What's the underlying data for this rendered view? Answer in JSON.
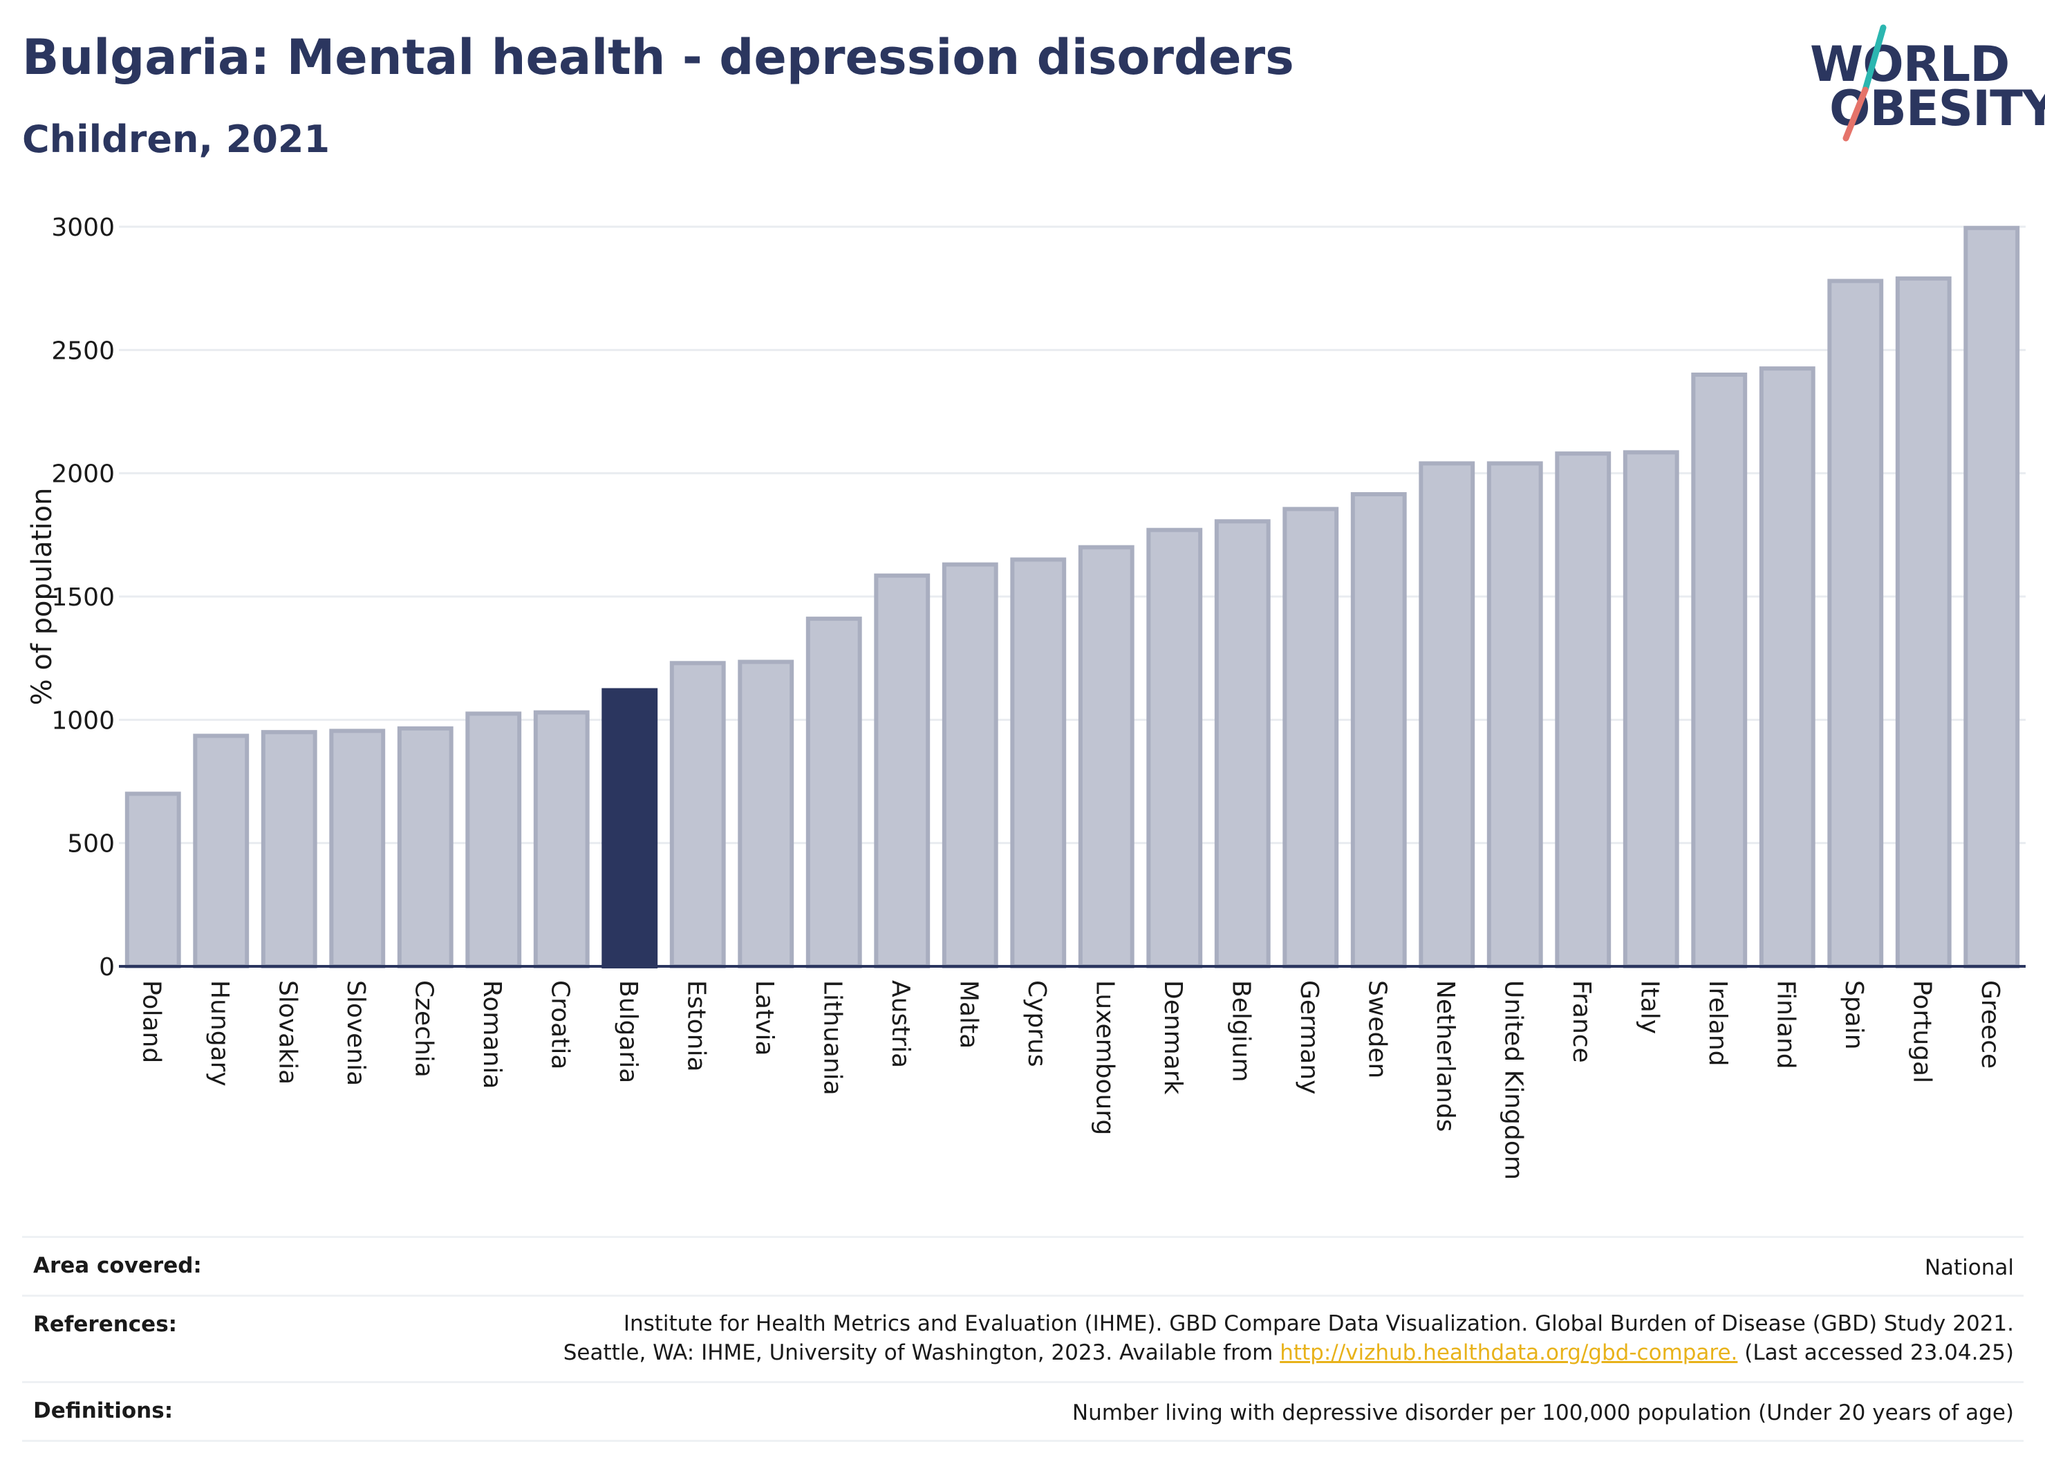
{
  "header": {
    "title": "Bulgaria: Mental health - depression disorders",
    "subtitle": "Children, 2021"
  },
  "logo": {
    "line1": "WORLD",
    "line2": "OBESITY",
    "slash_colors": [
      "#2bb6b0",
      "#e5736a"
    ]
  },
  "chart_data": {
    "type": "bar",
    "ylabel": "% of population",
    "ylim": [
      0,
      3000
    ],
    "yticks": [
      0,
      500,
      1000,
      1500,
      2000,
      2500,
      3000
    ],
    "grid": true,
    "categories": [
      "Poland",
      "Hungary",
      "Slovakia",
      "Slovenia",
      "Czechia",
      "Romania",
      "Croatia",
      "Bulgaria",
      "Estonia",
      "Latvia",
      "Lithuania",
      "Austria",
      "Malta",
      "Cyprus",
      "Luxembourg",
      "Denmark",
      "Belgium",
      "Germany",
      "Sweden",
      "Netherlands",
      "United Kingdom",
      "France",
      "Italy",
      "Ireland",
      "Finland",
      "Spain",
      "Portugal",
      "Greece"
    ],
    "values": [
      700,
      935,
      950,
      955,
      965,
      1025,
      1030,
      1120,
      1230,
      1235,
      1410,
      1585,
      1630,
      1650,
      1700,
      1770,
      1805,
      1855,
      1915,
      2040,
      2040,
      2080,
      2085,
      2400,
      2425,
      2780,
      2790,
      2995
    ],
    "highlight": "Bulgaria",
    "colors": {
      "bar": "#c0c4d2",
      "bar_edge": "#a9aec0",
      "highlight": "#2b365f",
      "grid": "#e9ecf0",
      "axis": "#2b365f"
    }
  },
  "footer": {
    "area_label": "Area covered:",
    "area_value": "National",
    "references_label": "References:",
    "references_line1": "Institute for Health Metrics and Evaluation (IHME). GBD Compare Data Visualization. Global Burden of Disease (GBD) Study 2021.",
    "references_line2_pre": "Seattle, WA: IHME, University of Washington, 2023. Available from ",
    "references_link": "http://vizhub.healthdata.org/gbd-compare.",
    "references_line2_post": " (Last accessed 23.04.25)",
    "definitions_label": "Definitions:",
    "definitions_value": "Number living with depressive disorder per 100,000 population (Under 20 years of age)"
  }
}
